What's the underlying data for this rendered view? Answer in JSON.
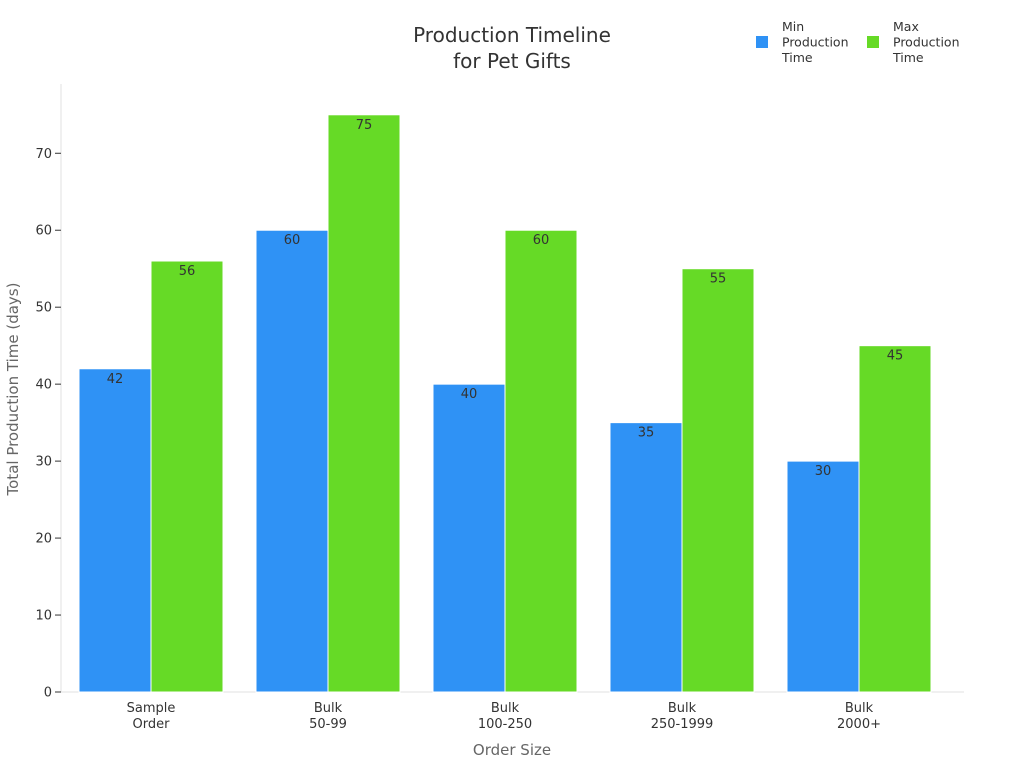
{
  "chart_data": {
    "type": "bar",
    "title": [
      "Production Timeline",
      "for Pet Gifts"
    ],
    "xlabel": "Order Size",
    "ylabel": "Total Production Time (days)",
    "categories": [
      [
        "Sample",
        "Order"
      ],
      [
        "Bulk",
        "50-99"
      ],
      [
        "Bulk",
        "100-250"
      ],
      [
        "Bulk",
        "250-1999"
      ],
      [
        "Bulk",
        "2000+"
      ]
    ],
    "series": [
      {
        "name": [
          "Min",
          "Production",
          "Time"
        ],
        "values": [
          42,
          60,
          40,
          35,
          30
        ],
        "color": "#2F92F5"
      },
      {
        "name": [
          "Max",
          "Production",
          "Time"
        ],
        "values": [
          56,
          75,
          60,
          55,
          45
        ],
        "color": "#66DA26"
      }
    ],
    "ylim": [
      0,
      79
    ],
    "yticks": [
      0,
      10,
      20,
      30,
      40,
      50,
      60,
      70
    ],
    "grid": false,
    "legend_position": "top-right",
    "data_labels": true
  }
}
